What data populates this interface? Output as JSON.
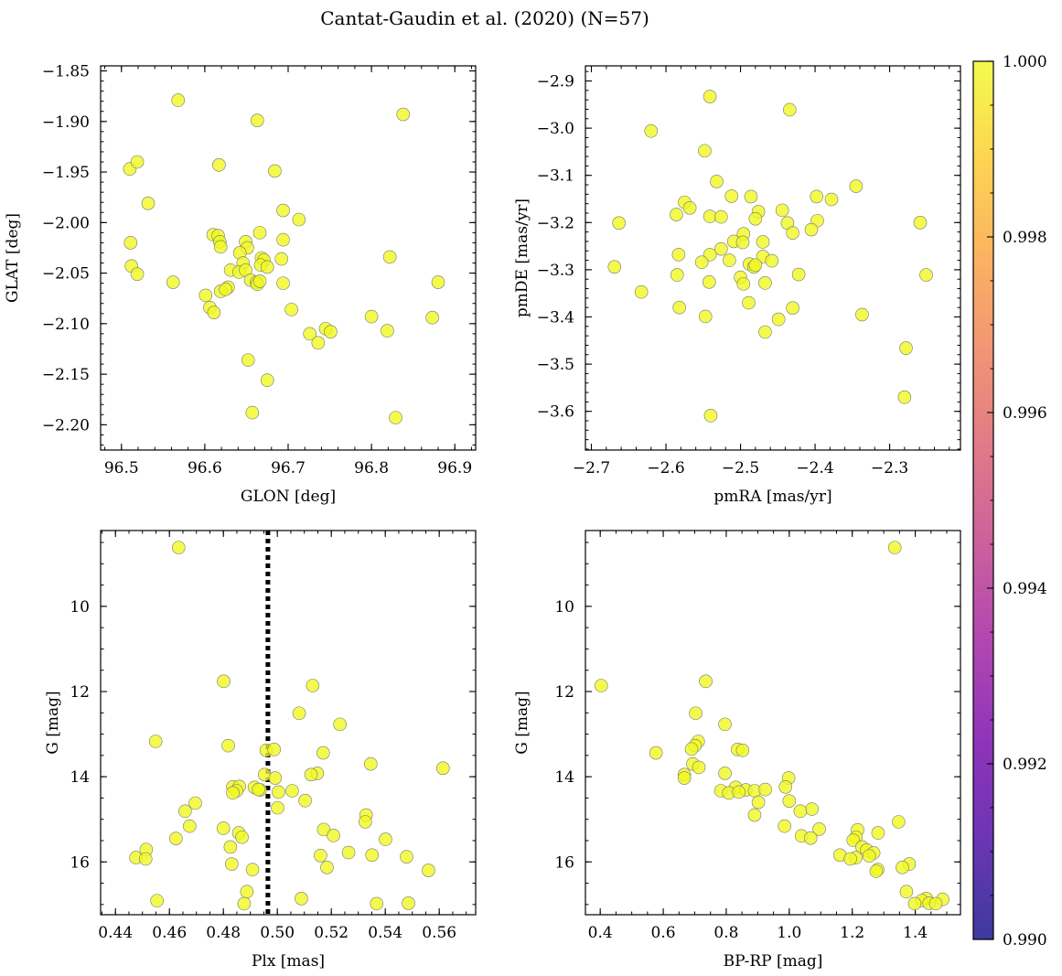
{
  "figure": {
    "title": "Cantat-Gaudin et al. (2020) (N=57)",
    "point_color": "#f0f921",
    "point_alpha": 0.8
  },
  "colorbar": {
    "min": 0.99,
    "max": 1.0,
    "tick_labels": [
      "0.990",
      "0.992",
      "0.994",
      "0.996",
      "0.998",
      "1.000"
    ],
    "tick_values": [
      0.99,
      0.992,
      0.994,
      0.996,
      0.998,
      1.0
    ],
    "colormap": [
      "#0d0887",
      "#46039f",
      "#7201a8",
      "#9c179e",
      "#bd3786",
      "#d8576b",
      "#ed7953",
      "#fb9f3a",
      "#fdca26",
      "#f0f921"
    ]
  },
  "chart_data": [
    {
      "id": "p0",
      "type": "scatter",
      "xlabel": "GLON [deg]",
      "ylabel": "GLAT [deg]",
      "xlim": [
        96.475,
        96.925
      ],
      "ylim": [
        -2.225,
        -1.845
      ],
      "y_inverted": false,
      "xticks": [
        96.5,
        96.6,
        96.7,
        96.8,
        96.9
      ],
      "xtick_labels": [
        "96.5",
        "96.6",
        "96.7",
        "96.8",
        "96.9"
      ],
      "yticks": [
        -1.85,
        -1.9,
        -1.95,
        -2.0,
        -2.05,
        -2.1,
        -2.15,
        -2.2
      ],
      "ytick_labels": [
        "−1.85",
        "−1.90",
        "−1.95",
        "−2.00",
        "−2.05",
        "−2.10",
        "−2.15",
        "−2.20"
      ],
      "x_minor_step": 0.02,
      "y_minor_step": 0.01,
      "points": [
        [
          96.568,
          -1.879
        ],
        [
          96.663,
          -1.899
        ],
        [
          96.838,
          -1.893
        ],
        [
          96.51,
          -1.947
        ],
        [
          96.519,
          -1.94
        ],
        [
          96.617,
          -1.943
        ],
        [
          96.684,
          -1.949
        ],
        [
          96.532,
          -1.981
        ],
        [
          96.694,
          -1.988
        ],
        [
          96.713,
          -1.997
        ],
        [
          96.511,
          -2.02
        ],
        [
          96.61,
          -2.012
        ],
        [
          96.616,
          -2.013
        ],
        [
          96.618,
          -2.019
        ],
        [
          96.619,
          -2.024
        ],
        [
          96.666,
          -2.01
        ],
        [
          96.694,
          -2.017
        ],
        [
          96.512,
          -2.043
        ],
        [
          96.519,
          -2.051
        ],
        [
          96.649,
          -2.019
        ],
        [
          96.651,
          -2.025
        ],
        [
          96.642,
          -2.03
        ],
        [
          96.668,
          -2.035
        ],
        [
          96.671,
          -2.037
        ],
        [
          96.692,
          -2.036
        ],
        [
          96.646,
          -2.04
        ],
        [
          96.667,
          -2.042
        ],
        [
          96.675,
          -2.044
        ],
        [
          96.631,
          -2.047
        ],
        [
          96.641,
          -2.049
        ],
        [
          96.649,
          -2.047
        ],
        [
          96.822,
          -2.034
        ],
        [
          96.562,
          -2.059
        ],
        [
          96.601,
          -2.072
        ],
        [
          96.628,
          -2.064
        ],
        [
          96.619,
          -2.068
        ],
        [
          96.655,
          -2.057
        ],
        [
          96.662,
          -2.059
        ],
        [
          96.663,
          -2.061
        ],
        [
          96.694,
          -2.06
        ],
        [
          96.88,
          -2.059
        ],
        [
          96.606,
          -2.084
        ],
        [
          96.611,
          -2.089
        ],
        [
          96.704,
          -2.086
        ],
        [
          96.8,
          -2.093
        ],
        [
          96.873,
          -2.094
        ],
        [
          96.745,
          -2.105
        ],
        [
          96.751,
          -2.108
        ],
        [
          96.726,
          -2.11
        ],
        [
          96.819,
          -2.107
        ],
        [
          96.736,
          -2.119
        ],
        [
          96.652,
          -2.136
        ],
        [
          96.675,
          -2.156
        ],
        [
          96.657,
          -2.188
        ],
        [
          96.829,
          -2.193
        ],
        [
          96.666,
          -2.058
        ],
        [
          96.625,
          -2.066
        ]
      ]
    },
    {
      "id": "p1",
      "type": "scatter",
      "xlabel": "pmRA [mas/yr]",
      "ylabel": "pmDE [mas/yr]",
      "xlim": [
        -2.708,
        -2.205
      ],
      "ylim": [
        -3.682,
        -2.868
      ],
      "y_inverted": false,
      "xticks": [
        -2.7,
        -2.6,
        -2.5,
        -2.4,
        -2.3
      ],
      "xtick_labels": [
        "−2.7",
        "−2.6",
        "−2.5",
        "−2.4",
        "−2.3"
      ],
      "yticks": [
        -2.9,
        -3.0,
        -3.1,
        -3.2,
        -3.3,
        -3.4,
        -3.5,
        -3.6
      ],
      "ytick_labels": [
        "−2.9",
        "−3.0",
        "−3.1",
        "−3.2",
        "−3.3",
        "−3.4",
        "−3.5",
        "−3.6"
      ],
      "x_minor_step": 0.02,
      "y_minor_step": 0.02,
      "points": [
        [
          -2.541,
          -2.933
        ],
        [
          -2.434,
          -2.961
        ],
        [
          -2.62,
          -3.006
        ],
        [
          -2.548,
          -3.048
        ],
        [
          -2.532,
          -3.113
        ],
        [
          -2.345,
          -3.123
        ],
        [
          -2.512,
          -3.144
        ],
        [
          -2.486,
          -3.145
        ],
        [
          -2.398,
          -3.145
        ],
        [
          -2.378,
          -3.151
        ],
        [
          -2.575,
          -3.157
        ],
        [
          -2.568,
          -3.169
        ],
        [
          -2.586,
          -3.183
        ],
        [
          -2.541,
          -3.187
        ],
        [
          -2.526,
          -3.188
        ],
        [
          -2.476,
          -3.177
        ],
        [
          -2.444,
          -3.174
        ],
        [
          -2.663,
          -3.201
        ],
        [
          -2.48,
          -3.192
        ],
        [
          -2.437,
          -3.201
        ],
        [
          -2.397,
          -3.196
        ],
        [
          -2.405,
          -3.215
        ],
        [
          -2.43,
          -3.222
        ],
        [
          -2.496,
          -3.224
        ],
        [
          -2.259,
          -3.2
        ],
        [
          -2.509,
          -3.24
        ],
        [
          -2.497,
          -3.242
        ],
        [
          -2.47,
          -3.241
        ],
        [
          -2.526,
          -3.256
        ],
        [
          -2.541,
          -3.268
        ],
        [
          -2.583,
          -3.268
        ],
        [
          -2.47,
          -3.272
        ],
        [
          -2.458,
          -3.281
        ],
        [
          -2.552,
          -3.284
        ],
        [
          -2.515,
          -3.28
        ],
        [
          -2.488,
          -3.288
        ],
        [
          -2.482,
          -3.294
        ],
        [
          -2.669,
          -3.294
        ],
        [
          -2.585,
          -3.311
        ],
        [
          -2.5,
          -3.316
        ],
        [
          -2.422,
          -3.31
        ],
        [
          -2.251,
          -3.311
        ],
        [
          -2.542,
          -3.326
        ],
        [
          -2.496,
          -3.33
        ],
        [
          -2.467,
          -3.328
        ],
        [
          -2.633,
          -3.347
        ],
        [
          -2.489,
          -3.37
        ],
        [
          -2.582,
          -3.38
        ],
        [
          -2.43,
          -3.381
        ],
        [
          -2.337,
          -3.395
        ],
        [
          -2.547,
          -3.399
        ],
        [
          -2.449,
          -3.405
        ],
        [
          -2.467,
          -3.432
        ],
        [
          -2.278,
          -3.466
        ],
        [
          -2.28,
          -3.57
        ],
        [
          -2.54,
          -3.609
        ],
        [
          -2.48,
          -3.29
        ]
      ]
    },
    {
      "id": "p2",
      "type": "scatter",
      "xlabel": "Plx [mas]",
      "ylabel": "G [mag]",
      "xlim": [
        0.4345,
        0.5735
      ],
      "ylim": [
        17.24,
        8.22
      ],
      "y_inverted": true,
      "xticks": [
        0.44,
        0.46,
        0.48,
        0.5,
        0.52,
        0.54,
        0.56
      ],
      "xtick_labels": [
        "0.44",
        "0.46",
        "0.48",
        "0.50",
        "0.52",
        "0.54",
        "0.56"
      ],
      "yticks": [
        10,
        12,
        14,
        16
      ],
      "ytick_labels": [
        "10",
        "12",
        "14",
        "16"
      ],
      "x_minor_step": 0.005,
      "y_minor_step": 0.5,
      "vline": 0.4965,
      "points": [
        [
          0.4634,
          8.62
        ],
        [
          0.4801,
          11.76
        ],
        [
          0.5131,
          11.86
        ],
        [
          0.5081,
          12.51
        ],
        [
          0.5232,
          12.77
        ],
        [
          0.4549,
          13.17
        ],
        [
          0.4818,
          13.27
        ],
        [
          0.4959,
          13.38
        ],
        [
          0.4988,
          13.36
        ],
        [
          0.517,
          13.44
        ],
        [
          0.5346,
          13.7
        ],
        [
          0.4953,
          13.95
        ],
        [
          0.5148,
          13.92
        ],
        [
          0.5125,
          13.95
        ],
        [
          0.4992,
          14.03
        ],
        [
          0.5614,
          13.8
        ],
        [
          0.4835,
          14.24
        ],
        [
          0.4859,
          14.23
        ],
        [
          0.4915,
          14.25
        ],
        [
          0.4936,
          14.31
        ],
        [
          0.4849,
          14.33
        ],
        [
          0.4835,
          14.38
        ],
        [
          0.5055,
          14.33
        ],
        [
          0.5004,
          14.36
        ],
        [
          0.5103,
          14.56
        ],
        [
          0.4696,
          14.62
        ],
        [
          0.5001,
          14.73
        ],
        [
          0.4658,
          14.81
        ],
        [
          0.5329,
          14.9
        ],
        [
          0.5326,
          15.06
        ],
        [
          0.4675,
          15.16
        ],
        [
          0.48,
          15.21
        ],
        [
          0.5172,
          15.24
        ],
        [
          0.4857,
          15.32
        ],
        [
          0.4869,
          15.42
        ],
        [
          0.4624,
          15.45
        ],
        [
          0.5208,
          15.38
        ],
        [
          0.5401,
          15.47
        ],
        [
          0.4514,
          15.71
        ],
        [
          0.4826,
          15.65
        ],
        [
          0.5264,
          15.78
        ],
        [
          0.4476,
          15.9
        ],
        [
          0.4512,
          15.93
        ],
        [
          0.516,
          15.85
        ],
        [
          0.5351,
          15.84
        ],
        [
          0.5479,
          15.88
        ],
        [
          0.4831,
          16.05
        ],
        [
          0.5184,
          16.13
        ],
        [
          0.4908,
          16.18
        ],
        [
          0.556,
          16.2
        ],
        [
          0.4887,
          16.7
        ],
        [
          0.4554,
          16.91
        ],
        [
          0.5089,
          16.86
        ],
        [
          0.4877,
          16.98
        ],
        [
          0.5368,
          16.98
        ],
        [
          0.5486,
          16.97
        ],
        [
          0.493,
          14.3
        ]
      ]
    },
    {
      "id": "p3",
      "type": "scatter",
      "xlabel": "BP-RP [mag]",
      "ylabel": "G [mag]",
      "xlim": [
        0.353,
        1.5435
      ],
      "ylim": [
        17.24,
        8.22
      ],
      "y_inverted": true,
      "xticks": [
        0.4,
        0.6,
        0.8,
        1.0,
        1.2,
        1.4
      ],
      "xtick_labels": [
        "0.4",
        "0.6",
        "0.8",
        "1.0",
        "1.2",
        "1.4"
      ],
      "yticks": [
        10,
        12,
        14,
        16
      ],
      "ytick_labels": [
        "10",
        "12",
        "14",
        "16"
      ],
      "x_minor_step": 0.05,
      "y_minor_step": 0.5,
      "points": [
        [
          1.335,
          8.62
        ],
        [
          0.403,
          11.86
        ],
        [
          0.735,
          11.76
        ],
        [
          0.703,
          12.51
        ],
        [
          0.796,
          12.77
        ],
        [
          0.577,
          13.44
        ],
        [
          0.711,
          13.17
        ],
        [
          0.701,
          13.27
        ],
        [
          0.836,
          13.36
        ],
        [
          0.852,
          13.38
        ],
        [
          0.69,
          13.35
        ],
        [
          0.694,
          13.7
        ],
        [
          0.667,
          13.95
        ],
        [
          0.667,
          14.03
        ],
        [
          0.713,
          13.78
        ],
        [
          0.796,
          13.92
        ],
        [
          0.998,
          14.03
        ],
        [
          0.988,
          14.24
        ],
        [
          0.83,
          14.25
        ],
        [
          0.862,
          14.31
        ],
        [
          0.783,
          14.33
        ],
        [
          0.808,
          14.38
        ],
        [
          0.84,
          14.36
        ],
        [
          0.89,
          14.33
        ],
        [
          0.924,
          14.3
        ],
        [
          0.902,
          14.6
        ],
        [
          1.0,
          14.57
        ],
        [
          1.072,
          14.76
        ],
        [
          1.035,
          14.81
        ],
        [
          0.89,
          14.9
        ],
        [
          1.347,
          15.06
        ],
        [
          0.985,
          15.16
        ],
        [
          1.095,
          15.23
        ],
        [
          1.217,
          15.25
        ],
        [
          1.282,
          15.32
        ],
        [
          1.039,
          15.39
        ],
        [
          1.068,
          15.44
        ],
        [
          1.212,
          15.42
        ],
        [
          1.203,
          15.49
        ],
        [
          1.231,
          15.65
        ],
        [
          1.246,
          15.72
        ],
        [
          1.268,
          15.79
        ],
        [
          1.161,
          15.84
        ],
        [
          1.211,
          15.9
        ],
        [
          1.194,
          15.93
        ],
        [
          1.254,
          15.86
        ],
        [
          1.381,
          16.05
        ],
        [
          1.359,
          16.13
        ],
        [
          1.281,
          16.18
        ],
        [
          1.276,
          16.22
        ],
        [
          1.372,
          16.7
        ],
        [
          1.435,
          16.86
        ],
        [
          1.421,
          16.91
        ],
        [
          1.487,
          16.88
        ],
        [
          1.398,
          16.98
        ],
        [
          1.444,
          16.97
        ],
        [
          1.465,
          16.98
        ]
      ]
    }
  ]
}
